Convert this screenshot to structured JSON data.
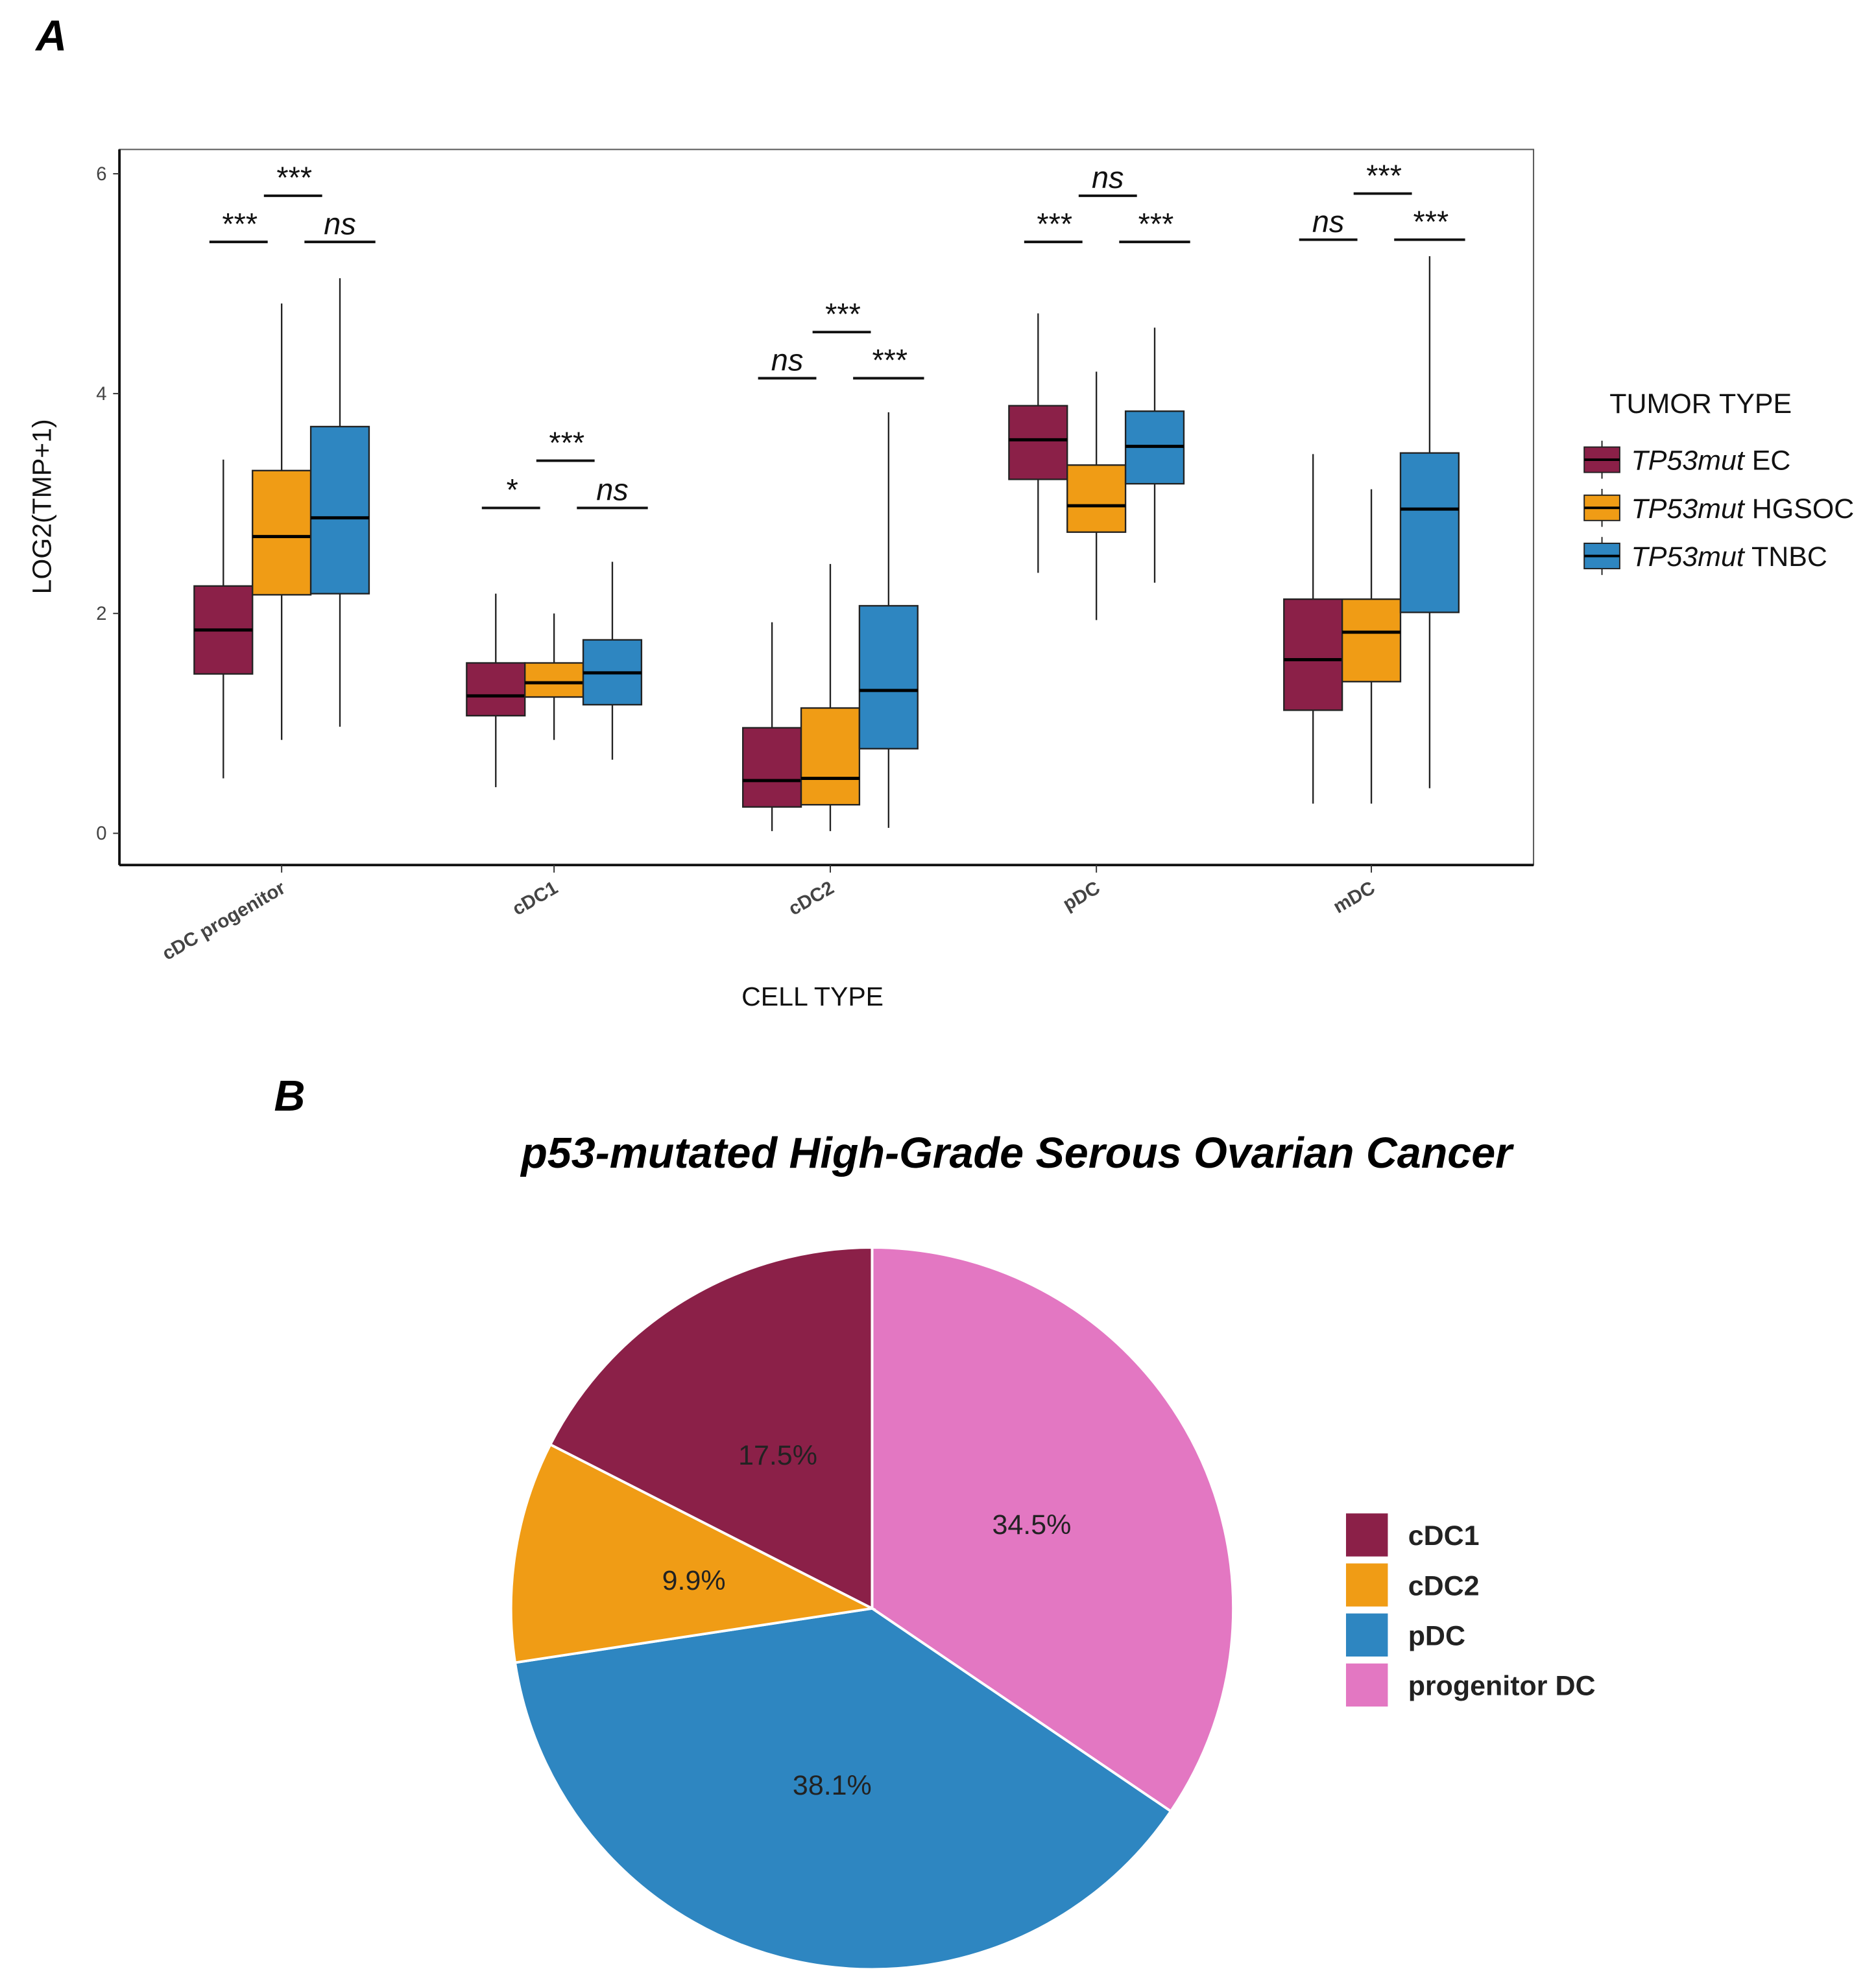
{
  "panel_a_label": "A",
  "panel_b_label": "B",
  "chart_data": [
    {
      "type": "box",
      "title": "",
      "xlabel": "CELL TYPE",
      "ylabel": "LOG2(TMP+1)",
      "ylim": [
        -0.3,
        6.2
      ],
      "yticks": [
        "0",
        "2",
        "4",
        "6"
      ],
      "grid": false,
      "categories": [
        "cDC progenitor",
        "cDC1",
        "cDC2",
        "pDC",
        "mDC"
      ],
      "legend": {
        "title": "TUMOR TYPE",
        "placement": "right"
      },
      "series": [
        {
          "name": "TP53mut EC",
          "italic_part": "TP53mut",
          "suffix": " EC",
          "color": "#8B2048",
          "boxes": [
            {
              "min": 0.5,
              "q1": 1.45,
              "median": 1.85,
              "q3": 2.25,
              "max": 3.4
            },
            {
              "min": 0.42,
              "q1": 1.07,
              "median": 1.25,
              "q3": 1.55,
              "max": 2.18
            },
            {
              "min": 0.02,
              "q1": 0.24,
              "median": 0.48,
              "q3": 0.96,
              "max": 1.92
            },
            {
              "min": 2.37,
              "q1": 3.22,
              "median": 3.58,
              "q3": 3.89,
              "max": 4.73
            },
            {
              "min": 0.27,
              "q1": 1.12,
              "median": 1.58,
              "q3": 2.13,
              "max": 3.45
            }
          ]
        },
        {
          "name": "TP53mut HGSOC",
          "italic_part": "TP53mut",
          "suffix": " HGSOC",
          "color": "#F09C15",
          "boxes": [
            {
              "min": 0.85,
              "q1": 2.17,
              "median": 2.7,
              "q3": 3.3,
              "max": 4.82
            },
            {
              "min": 0.85,
              "q1": 1.24,
              "median": 1.37,
              "q3": 1.55,
              "max": 2.0
            },
            {
              "min": 0.02,
              "q1": 0.26,
              "median": 0.5,
              "q3": 1.14,
              "max": 2.45
            },
            {
              "min": 1.94,
              "q1": 2.74,
              "median": 2.98,
              "q3": 3.35,
              "max": 4.2
            },
            {
              "min": 0.27,
              "q1": 1.38,
              "median": 1.83,
              "q3": 2.13,
              "max": 3.13
            }
          ]
        },
        {
          "name": "TP53mut TNBC",
          "italic_part": "TP53mut",
          "suffix": " TNBC",
          "color": "#2E86C1",
          "boxes": [
            {
              "min": 0.97,
              "q1": 2.18,
              "median": 2.87,
              "q3": 3.7,
              "max": 5.05
            },
            {
              "min": 0.67,
              "q1": 1.17,
              "median": 1.46,
              "q3": 1.76,
              "max": 2.47
            },
            {
              "min": 0.05,
              "q1": 0.77,
              "median": 1.3,
              "q3": 2.07,
              "max": 3.83
            },
            {
              "min": 2.28,
              "q1": 3.18,
              "median": 3.52,
              "q3": 3.84,
              "max": 4.6
            },
            {
              "min": 0.41,
              "q1": 2.01,
              "median": 2.95,
              "q3": 3.46,
              "max": 5.25
            }
          ]
        }
      ],
      "significance": [
        [
          {
            "pair": "EC-HGSOC",
            "label": "***",
            "y": 5.38
          },
          {
            "pair": "HGSOC-TNBC",
            "label": "ns",
            "y": 5.38
          },
          {
            "pair": "EC-TNBC",
            "label": "***",
            "y": 5.8
          }
        ],
        [
          {
            "pair": "EC-HGSOC",
            "label": "*",
            "y": 2.96
          },
          {
            "pair": "HGSOC-TNBC",
            "label": "ns",
            "y": 2.96
          },
          {
            "pair": "EC-TNBC",
            "label": "***",
            "y": 3.39
          }
        ],
        [
          {
            "pair": "EC-HGSOC",
            "label": "ns",
            "y": 4.14
          },
          {
            "pair": "HGSOC-TNBC",
            "label": "***",
            "y": 4.14
          },
          {
            "pair": "EC-TNBC",
            "label": "***",
            "y": 4.56
          }
        ],
        [
          {
            "pair": "EC-HGSOC",
            "label": "***",
            "y": 5.38
          },
          {
            "pair": "HGSOC-TNBC",
            "label": "***",
            "y": 5.38
          },
          {
            "pair": "EC-TNBC",
            "label": "ns",
            "y": 5.8
          }
        ],
        [
          {
            "pair": "EC-HGSOC",
            "label": "ns",
            "y": 5.4
          },
          {
            "pair": "HGSOC-TNBC",
            "label": "***",
            "y": 5.4
          },
          {
            "pair": "EC-TNBC",
            "label": "***",
            "y": 5.82
          }
        ]
      ]
    },
    {
      "type": "pie",
      "title": "p53-mutated High-Grade Serous Ovarian Cancer",
      "slices": [
        {
          "label": "progenitor DC",
          "value": 34.5,
          "text": "34.5%",
          "color": "#E377C2"
        },
        {
          "label": "pDC",
          "value": 38.1,
          "text": "38.1%",
          "color": "#2E86C1"
        },
        {
          "label": "cDC2",
          "value": 9.9,
          "text": "9.9%",
          "color": "#F09C15"
        },
        {
          "label": "cDC1",
          "value": 17.5,
          "text": "17.5%",
          "color": "#8B2048"
        }
      ],
      "legend": {
        "order": [
          "cDC1",
          "cDC2",
          "pDC",
          "progenitor DC"
        ],
        "placement": "right"
      }
    }
  ]
}
